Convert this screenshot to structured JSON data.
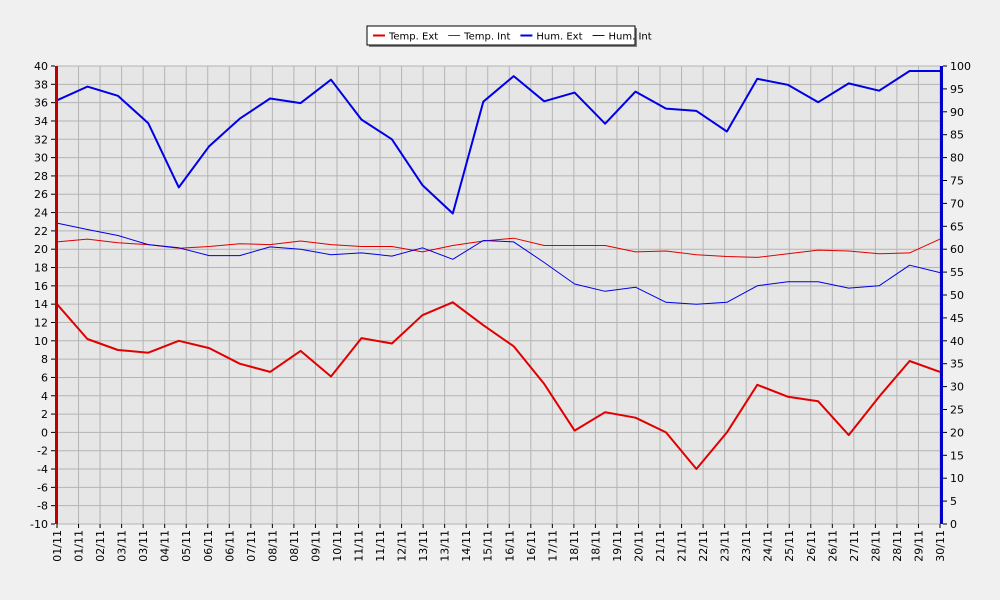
{
  "chart_data": {
    "type": "line",
    "categories": [
      "01/11",
      "01/11",
      "02/11",
      "03/11",
      "03/11",
      "04/11",
      "05/11",
      "06/11",
      "06/11",
      "07/11",
      "08/11",
      "08/11",
      "09/11",
      "10/11",
      "11/11",
      "11/11",
      "12/11",
      "13/11",
      "13/11",
      "14/11",
      "15/11",
      "16/11",
      "16/11",
      "17/11",
      "18/11",
      "18/11",
      "19/11",
      "20/11",
      "21/11",
      "21/11",
      "22/11",
      "23/11",
      "23/11",
      "24/11",
      "25/11",
      "26/11",
      "26/11",
      "27/11",
      "28/11",
      "28/11",
      "29/11",
      "30/11"
    ],
    "axes": {
      "left": {
        "ylim": [
          -10,
          40
        ],
        "ticks": [
          -10,
          -8,
          -6,
          -4,
          -2,
          0,
          2,
          4,
          6,
          8,
          10,
          12,
          14,
          16,
          18,
          20,
          22,
          24,
          26,
          28,
          30,
          32,
          34,
          36,
          38,
          40
        ]
      },
      "right": {
        "ylim": [
          0,
          100
        ],
        "ticks": [
          0,
          5,
          10,
          15,
          20,
          25,
          30,
          35,
          40,
          45,
          50,
          55,
          60,
          65,
          70,
          75,
          80,
          85,
          90,
          95,
          100
        ]
      }
    },
    "grid": true,
    "legend_position": "top-center",
    "series": [
      {
        "name": "Temp. Ext",
        "axis": "left",
        "color": "#e00000",
        "width": 2,
        "x": [
          0,
          1,
          2,
          3,
          4,
          5,
          6,
          7,
          8,
          9,
          10,
          11,
          12,
          13,
          14,
          15,
          16,
          17,
          18,
          19,
          20,
          21,
          22,
          23,
          24,
          25,
          26,
          27,
          28,
          29
        ],
        "values": [
          14,
          10.2,
          9.0,
          8.7,
          10.0,
          9.2,
          7.5,
          6.6,
          8.9,
          6.1,
          10.3,
          9.7,
          12.8,
          14.2,
          11.7,
          9.4,
          5.3,
          0.2,
          2.2,
          1.6,
          0.0,
          -4.0,
          0.0,
          5.2,
          3.9,
          3.4,
          -0.3,
          3.9,
          7.8,
          6.6
        ]
      },
      {
        "name": "Temp. Int",
        "axis": "left",
        "color": "#e00000",
        "width": 1,
        "x": [
          0,
          1,
          2,
          3,
          4,
          5,
          6,
          7,
          8,
          9,
          10,
          11,
          12,
          13,
          14,
          15,
          16,
          17,
          18,
          19,
          20,
          21,
          22,
          23,
          24,
          25,
          26,
          27,
          28,
          29
        ],
        "values": [
          20.8,
          21.1,
          20.7,
          20.5,
          20.1,
          20.3,
          20.6,
          20.5,
          20.9,
          20.5,
          20.3,
          20.3,
          19.7,
          20.4,
          20.9,
          21.2,
          20.4,
          20.4,
          20.4,
          19.7,
          19.8,
          19.4,
          19.2,
          19.1,
          19.5,
          19.9,
          19.8,
          19.5,
          19.6,
          21.1
        ]
      },
      {
        "name": "Hum. Ext",
        "axis": "right",
        "color": "#0000e6",
        "width": 2,
        "x": [
          0,
          1,
          2,
          3,
          4,
          5,
          6,
          7,
          8,
          9,
          10,
          11,
          12,
          13,
          14,
          15,
          16,
          17,
          18,
          19,
          20,
          21,
          22,
          23,
          24,
          25,
          26,
          27,
          28,
          29
        ],
        "values": [
          92.5,
          95.5,
          93.5,
          87.5,
          73.5,
          82.5,
          88.5,
          92.9,
          91.9,
          97.0,
          88.3,
          84.0,
          74.0,
          67.8,
          92.2,
          97.8,
          92.3,
          94.2,
          87.4,
          94.4,
          90.7,
          90.2,
          85.7,
          97.2,
          95.9,
          92.1,
          96.2,
          94.6,
          98.9,
          98.9
        ]
      },
      {
        "name": "Hum. Int",
        "axis": "right",
        "color": "#0000e6",
        "width": 1,
        "x": [
          0,
          1,
          2,
          3,
          4,
          5,
          6,
          7,
          8,
          9,
          10,
          11,
          12,
          13,
          14,
          15,
          16,
          17,
          18,
          19,
          20,
          21,
          22,
          23,
          24,
          25,
          26,
          27,
          28,
          29
        ],
        "values": [
          65.7,
          64.3,
          63.0,
          61.0,
          60.3,
          58.6,
          58.6,
          60.5,
          60.0,
          58.8,
          59.2,
          58.5,
          60.3,
          57.8,
          61.9,
          61.6,
          57.1,
          52.4,
          50.8,
          51.7,
          48.4,
          48.0,
          48.4,
          52.0,
          52.9,
          52.9,
          51.5,
          52.0,
          56.5,
          54.9
        ]
      }
    ]
  }
}
